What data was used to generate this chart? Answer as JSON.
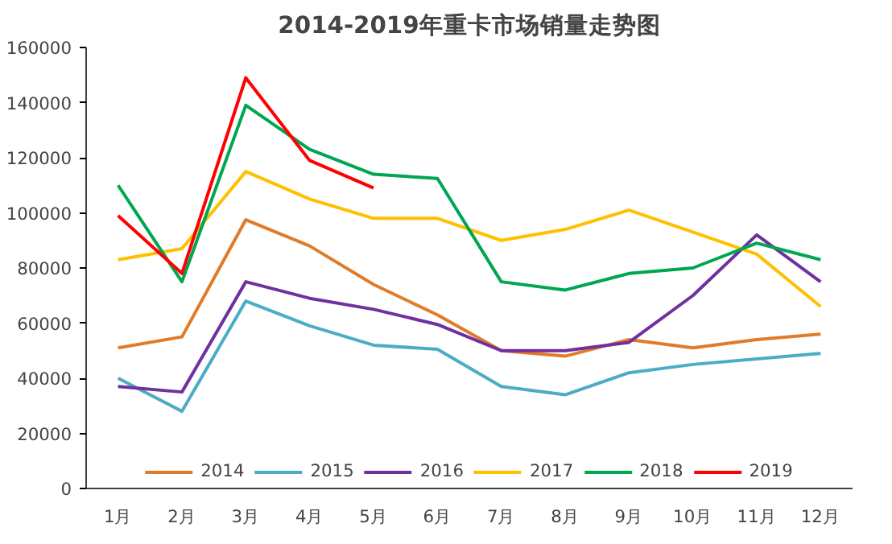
{
  "chart_data": {
    "type": "line",
    "title": "2014-2019年重卡市场销量走势图",
    "categories": [
      "1月",
      "2月",
      "3月",
      "4月",
      "5月",
      "6月",
      "7月",
      "8月",
      "9月",
      "10月",
      "11月",
      "12月"
    ],
    "series": [
      {
        "name": "2014",
        "color": "#e07b2a",
        "values": [
          51000,
          55000,
          97500,
          88000,
          74000,
          63000,
          50000,
          48000,
          54000,
          51000,
          54000,
          56000
        ]
      },
      {
        "name": "2015",
        "color": "#4bacc6",
        "values": [
          40000,
          28000,
          68000,
          59000,
          52000,
          50500,
          37000,
          34000,
          42000,
          45000,
          47000,
          49000
        ]
      },
      {
        "name": "2016",
        "color": "#7030a0",
        "values": [
          37000,
          35000,
          75000,
          69000,
          65000,
          59500,
          50000,
          50000,
          53000,
          70000,
          92000,
          75000
        ]
      },
      {
        "name": "2017",
        "color": "#ffc000",
        "values": [
          83000,
          87000,
          115000,
          105000,
          98000,
          98000,
          90000,
          94000,
          101000,
          93000,
          85000,
          66000
        ]
      },
      {
        "name": "2018",
        "color": "#00a651",
        "values": [
          110000,
          75000,
          139000,
          123000,
          114000,
          112500,
          75000,
          72000,
          78000,
          80000,
          89000,
          83000
        ]
      },
      {
        "name": "2019",
        "color": "#ff0000",
        "values": [
          99000,
          78000,
          149000,
          119000,
          109000,
          null,
          null,
          null,
          null,
          null,
          null,
          null
        ]
      }
    ],
    "ylim": [
      0,
      160000
    ],
    "yticks": [
      0,
      20000,
      40000,
      60000,
      80000,
      100000,
      120000,
      140000,
      160000
    ],
    "grid": false,
    "legend": "bottom",
    "marker": "none",
    "line_style": "solid"
  }
}
